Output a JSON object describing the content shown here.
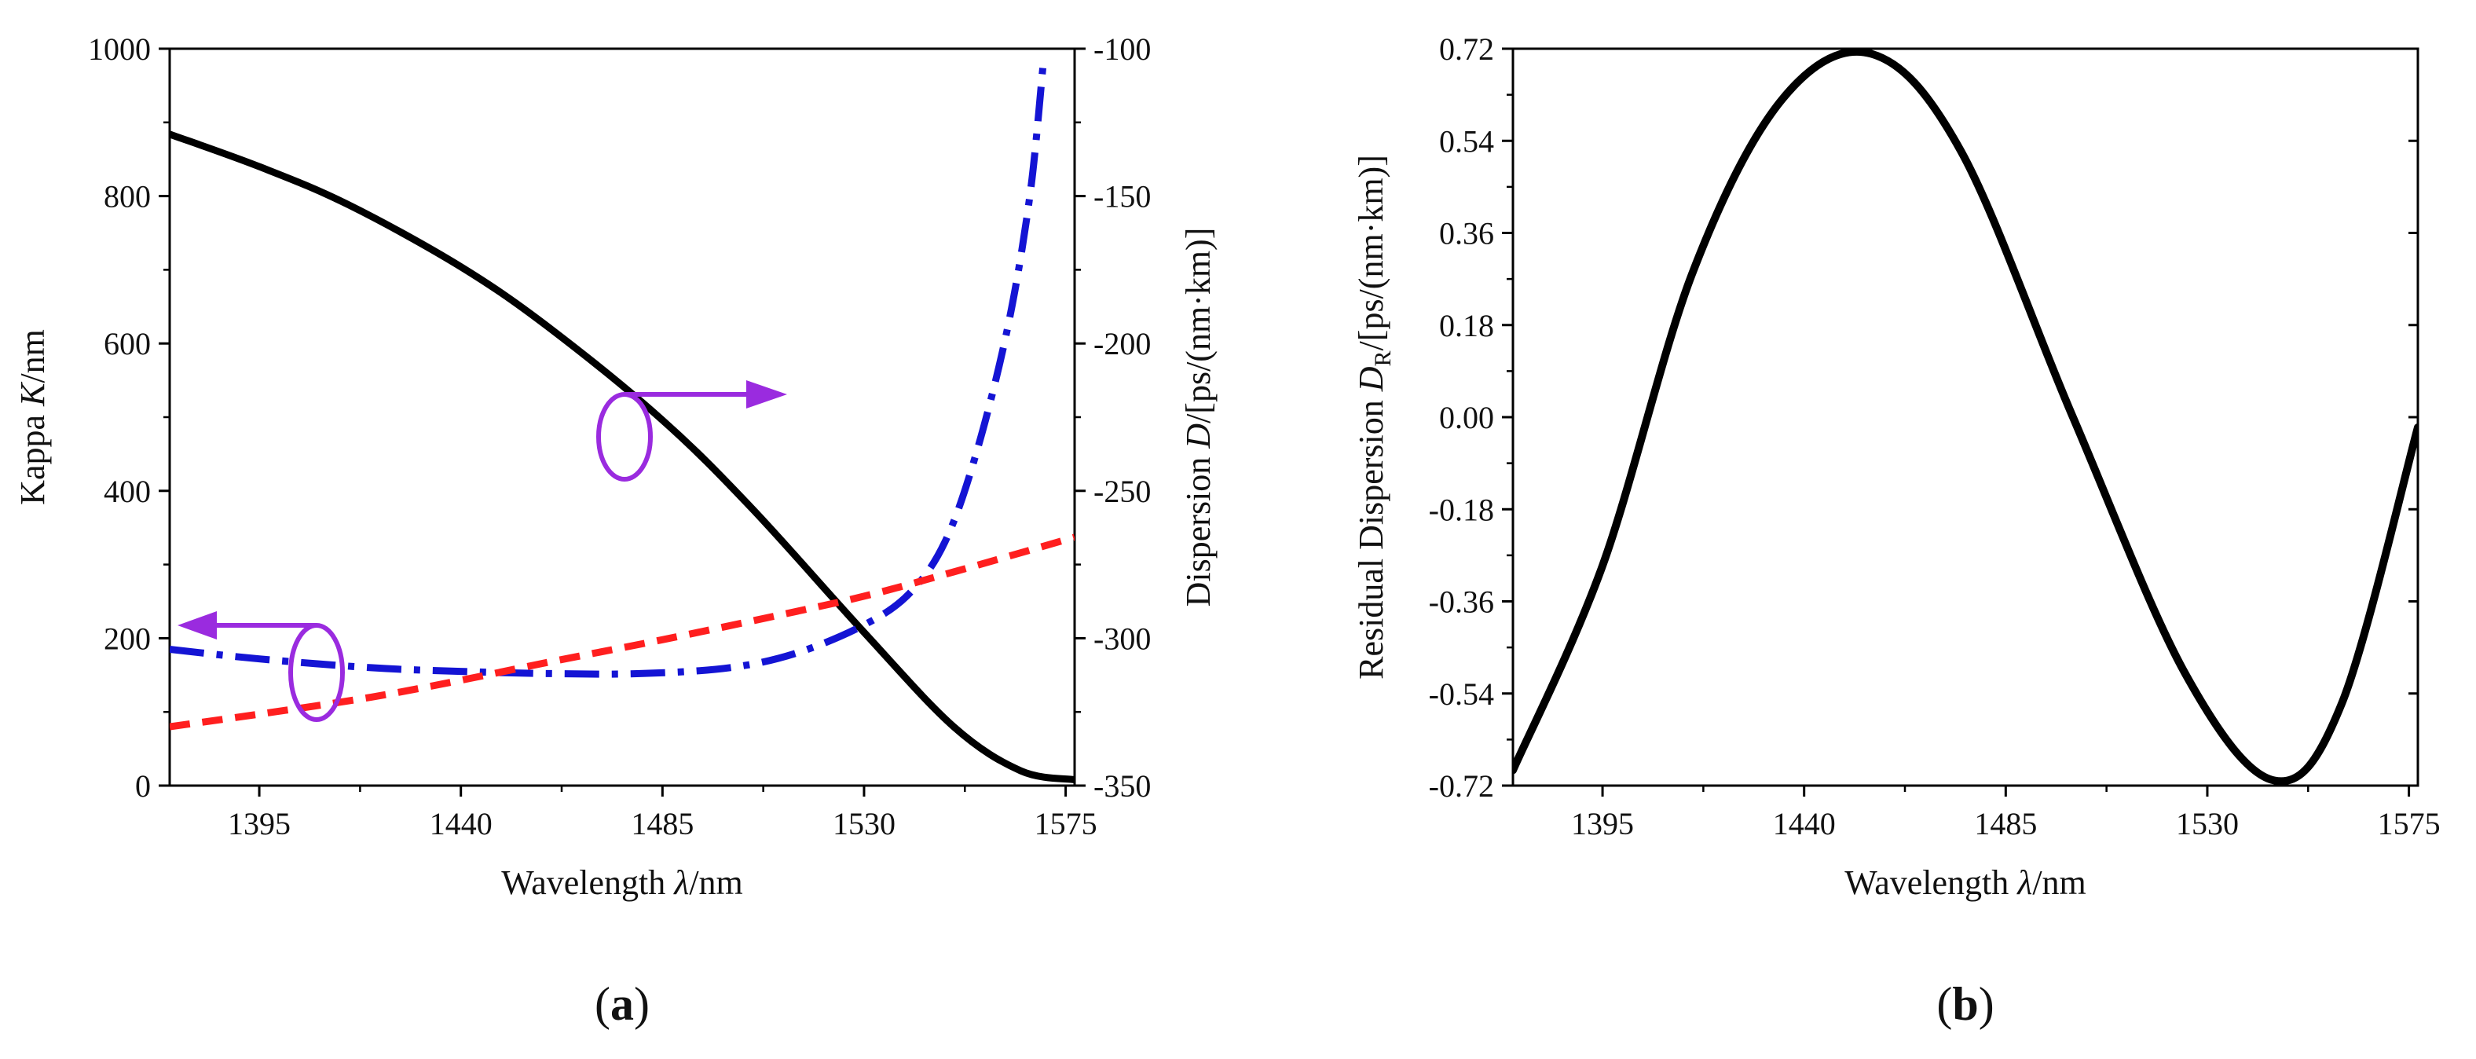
{
  "chart_data": [
    {
      "panel_label": "(a)",
      "panel_label_parts": [
        "(",
        "a",
        ")"
      ],
      "type": "line",
      "xlabel": "Wavelength λ/nm",
      "xlabel_parts": [
        "Wavelength ",
        "λ",
        "/nm"
      ],
      "ylabel": "Kappa K/nm",
      "ylabel_parts": [
        "Kappa ",
        "K",
        "/nm"
      ],
      "y2label": "Dispersion D/[ps/(nm·km)]",
      "y2label_parts": [
        "Dispersion ",
        "D",
        "/[ps/(nm·km)]"
      ],
      "xlim": [
        1375,
        1577
      ],
      "ylim": [
        0,
        1000
      ],
      "y2lim": [
        -350,
        -100
      ],
      "xticks": [
        1395,
        1440,
        1485,
        1530,
        1575
      ],
      "yticks": [
        0,
        200,
        400,
        600,
        800,
        1000
      ],
      "y2ticks": [
        -350,
        -300,
        -250,
        -200,
        -150,
        -100
      ],
      "series": [
        {
          "name": "Dispersion D",
          "axis": "right",
          "color": "#000000",
          "style": "solid",
          "x": [
            1375,
            1395,
            1415,
            1440,
            1460,
            1485,
            1505,
            1530,
            1550,
            1565,
            1577
          ],
          "y": [
            -129,
            -140,
            -153,
            -174,
            -195,
            -226,
            -256,
            -298,
            -330,
            -345,
            -348
          ]
        },
        {
          "name": "Kappa K (dash-dot)",
          "axis": "left",
          "color": "#1414d4",
          "style": "dashdot",
          "x": [
            1375,
            1395,
            1420,
            1440,
            1460,
            1480,
            1500,
            1515,
            1530,
            1540,
            1548,
            1555,
            1562,
            1567,
            1570
          ],
          "y": [
            185,
            172,
            160,
            155,
            152,
            152,
            160,
            180,
            218,
            260,
            330,
            450,
            620,
            800,
            980
          ]
        },
        {
          "name": "Kappa K (dashed)",
          "axis": "left",
          "color": "#ff1f1f",
          "style": "dashed",
          "x": [
            1375,
            1395,
            1420,
            1440,
            1460,
            1485,
            1510,
            1530,
            1550,
            1577
          ],
          "y": [
            80,
            97,
            120,
            143,
            168,
            198,
            230,
            257,
            290,
            337
          ]
        }
      ],
      "annotations": [
        {
          "label": "right-axis-marker",
          "direction": "right",
          "at": [
            1485,
            480
          ]
        },
        {
          "label": "left-axis-marker",
          "direction": "left",
          "at": [
            1418,
            160
          ]
        }
      ]
    },
    {
      "panel_label": "(b)",
      "panel_label_parts": [
        "(",
        "b",
        ")"
      ],
      "type": "line",
      "xlabel": "Wavelength λ/nm",
      "xlabel_parts": [
        "Wavelength ",
        "λ",
        "/nm"
      ],
      "ylabel": "Residual Dispersion DR/[ps/(nm·km)]",
      "ylabel_parts": [
        "Residual Dispersion ",
        "D",
        "R",
        "/[ps/(nm·km)]"
      ],
      "xlim": [
        1375,
        1577
      ],
      "ylim": [
        -0.72,
        0.72
      ],
      "xticks": [
        1395,
        1440,
        1485,
        1530,
        1575
      ],
      "yticks": [
        "-0.72",
        "-0.54",
        "-0.36",
        "-0.18",
        "0.00",
        "0.18",
        "0.36",
        "0.54",
        "0.72"
      ],
      "series": [
        {
          "name": "Residual Dispersion",
          "color": "#000000",
          "style": "solid",
          "x": [
            1375,
            1395,
            1415,
            1435,
            1455,
            1475,
            1500,
            1525,
            1545,
            1560,
            1577
          ],
          "y": [
            -0.69,
            -0.29,
            0.28,
            0.62,
            0.71,
            0.52,
            0.0,
            -0.5,
            -0.71,
            -0.56,
            -0.02
          ]
        }
      ]
    }
  ]
}
